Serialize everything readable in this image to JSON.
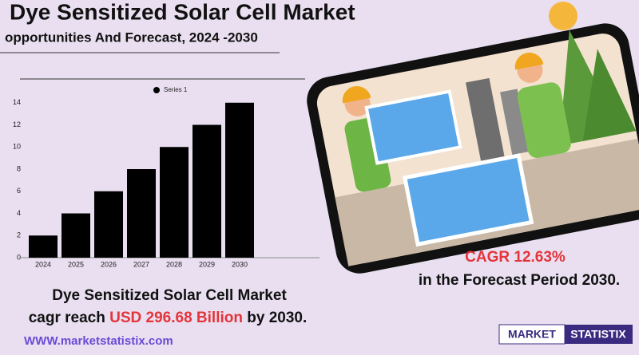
{
  "header": {
    "title": "Dye Sensitized Solar Cell Market",
    "subtitle": "opportunities And Forecast, 2024 -2030"
  },
  "chart_data": {
    "type": "bar",
    "categories": [
      "2024",
      "2025",
      "2026",
      "2027",
      "2028",
      "2029",
      "2030"
    ],
    "series": [
      {
        "name": "Series 1",
        "color": "#000000",
        "values": [
          2,
          4,
          6,
          8,
          10,
          12,
          14
        ]
      }
    ],
    "ylim": [
      0,
      16
    ],
    "yticks": [
      0,
      2,
      4,
      6,
      8,
      10,
      12,
      14
    ],
    "grid": false,
    "legend": "top"
  },
  "cagr": {
    "label": "CAGR  12.63%",
    "period": "in the  Forecast Period  2030."
  },
  "summary": {
    "line1": "Dye Sensitized Solar Cell Market",
    "line2_start": "cagr reach ",
    "line2_value": "USD 296.68 Billion",
    "line2_end": " by 2030."
  },
  "website": "WWW.marketstatistix.com",
  "logo": [
    "MARKET",
    "STATISTIX"
  ]
}
